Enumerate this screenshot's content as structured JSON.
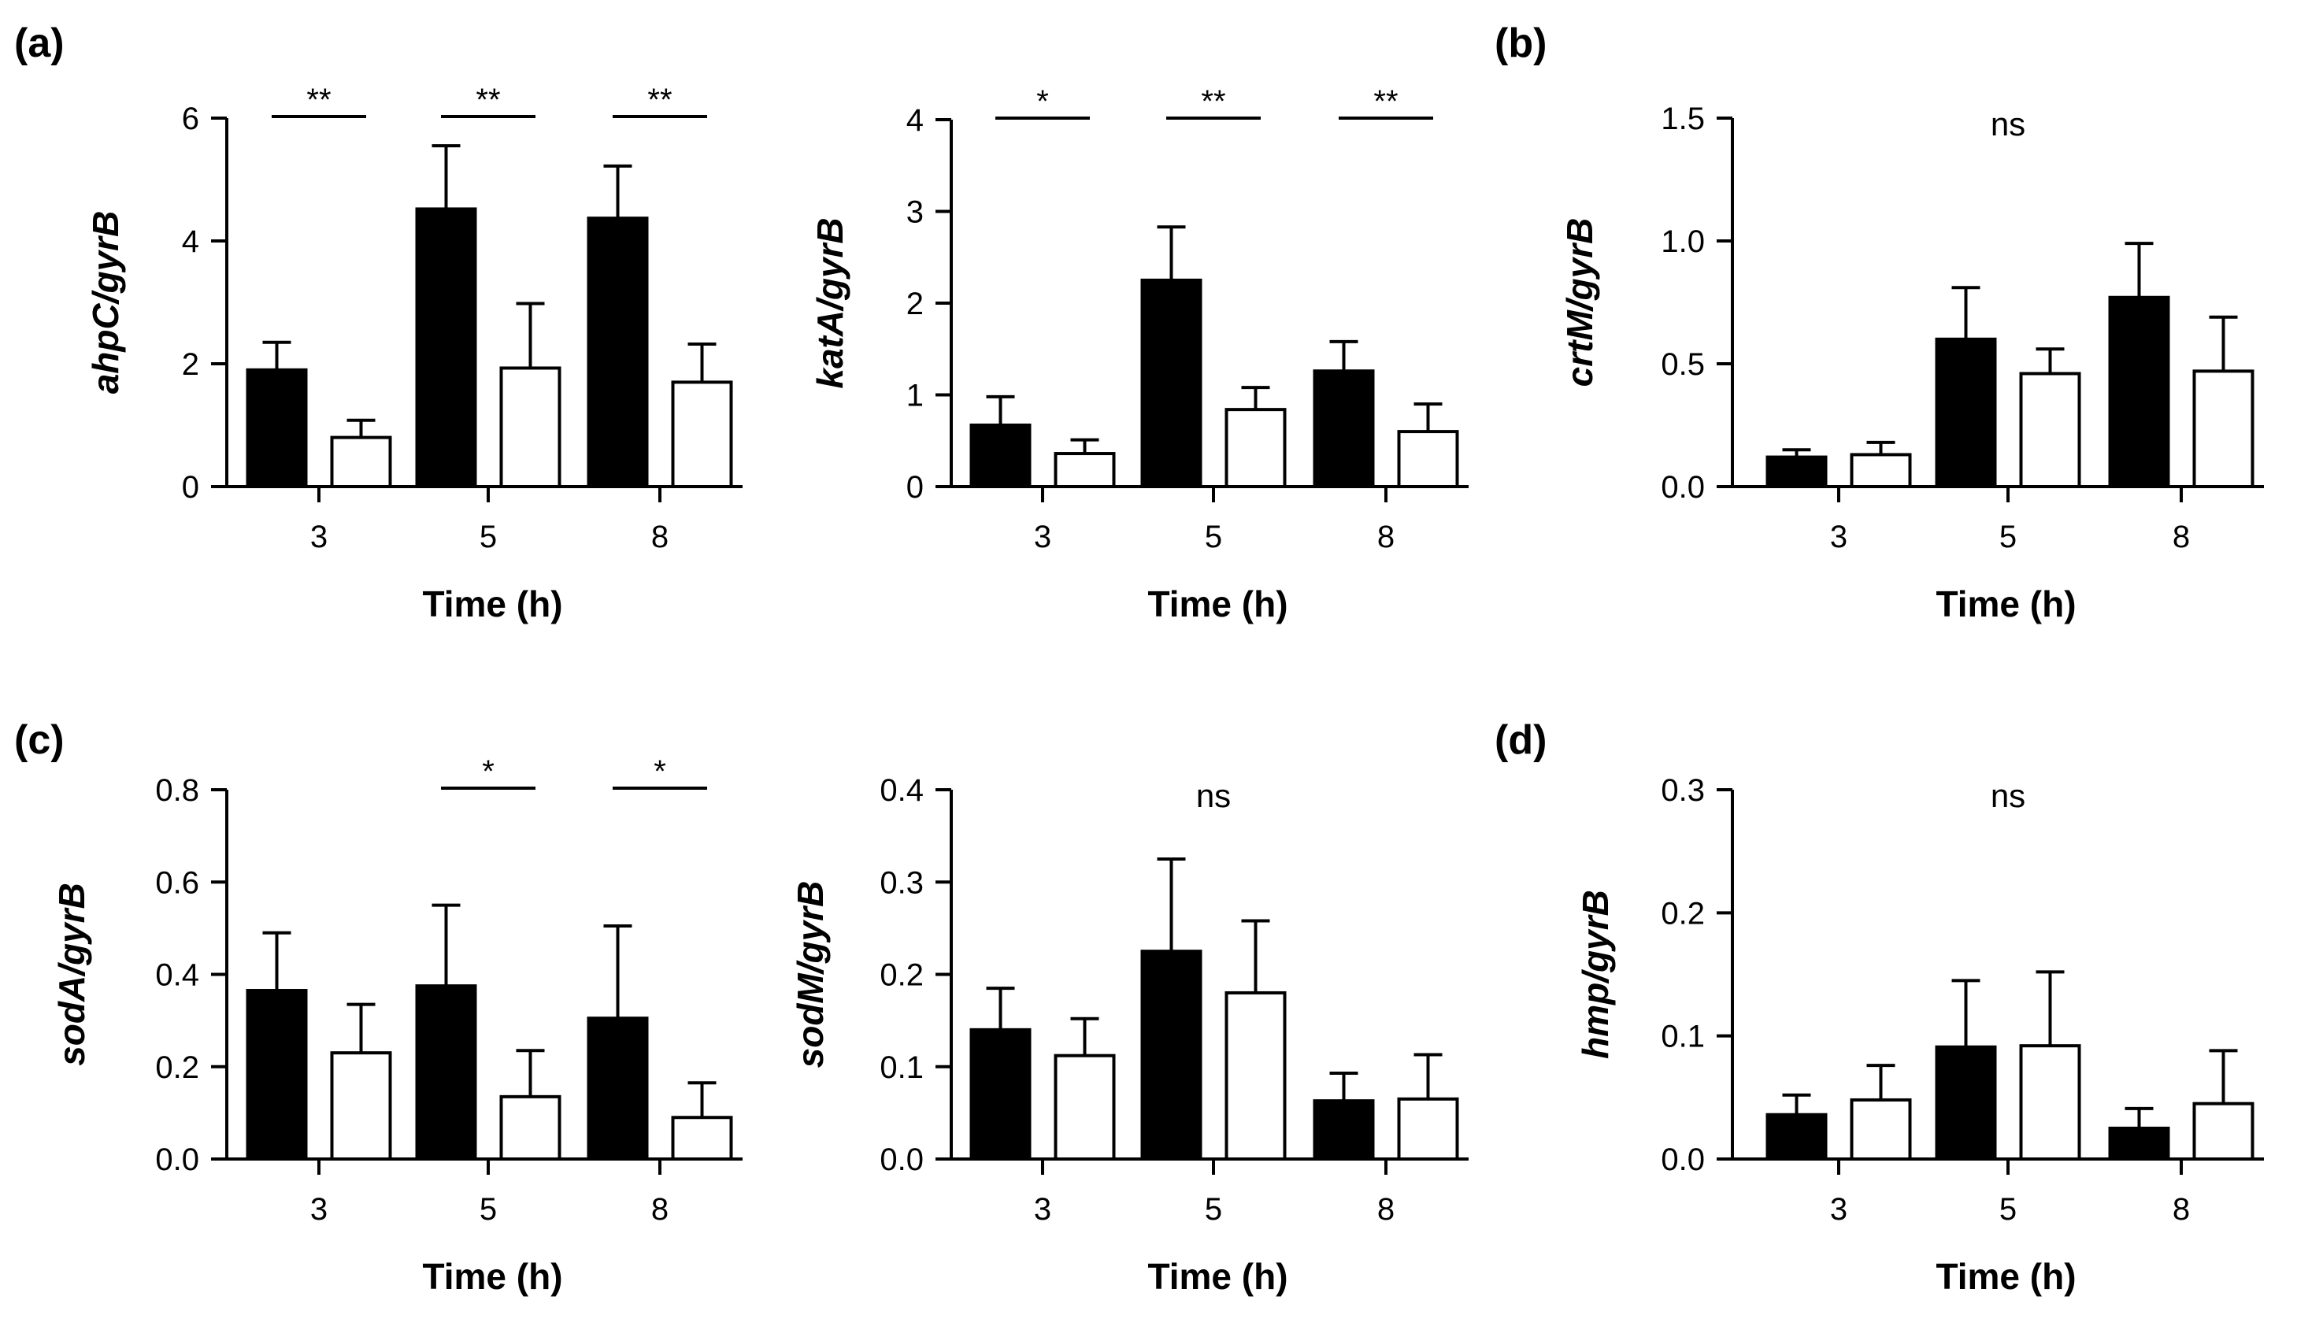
{
  "panel_letters": [
    "(a)",
    "(b)",
    "(c)",
    "(d)"
  ],
  "colors": {
    "series_filled": "#000000",
    "series_open": "#ffffff",
    "stroke": "#000000"
  },
  "chart_data": [
    {
      "type": "bar",
      "letter": "(a)",
      "ylabel": "ahpC/gyrB",
      "xlabel": "Time (h)",
      "categories": [
        "3",
        "5",
        "8"
      ],
      "ylim": [
        0,
        6
      ],
      "yticks": [
        "0",
        "2",
        "4",
        "6"
      ],
      "ytick_values": [
        0,
        2,
        4,
        6
      ],
      "series": [
        {
          "name": "filled",
          "values": [
            1.9,
            4.52,
            4.37
          ],
          "errors": [
            0.45,
            1.03,
            0.85
          ]
        },
        {
          "name": "open",
          "values": [
            0.8,
            1.93,
            1.7
          ],
          "errors": [
            0.28,
            1.05,
            0.62
          ]
        }
      ],
      "significance": [
        {
          "category": "3",
          "label": "**"
        },
        {
          "category": "5",
          "label": "**"
        },
        {
          "category": "8",
          "label": "**"
        }
      ],
      "ns_label": null
    },
    {
      "type": "bar",
      "letter": "",
      "ylabel": "katA/gyrB",
      "xlabel": "Time (h)",
      "categories": [
        "3",
        "5",
        "8"
      ],
      "ylim": [
        0,
        4
      ],
      "yticks": [
        "0",
        "1",
        "2",
        "3",
        "4"
      ],
      "ytick_values": [
        0,
        1,
        2,
        3,
        4
      ],
      "series": [
        {
          "name": "filled",
          "values": [
            0.67,
            2.25,
            1.26
          ],
          "errors": [
            0.31,
            0.58,
            0.32
          ]
        },
        {
          "name": "open",
          "values": [
            0.36,
            0.84,
            0.6
          ],
          "errors": [
            0.15,
            0.24,
            0.3
          ]
        }
      ],
      "significance": [
        {
          "category": "3",
          "label": "*"
        },
        {
          "category": "5",
          "label": "**"
        },
        {
          "category": "8",
          "label": "**"
        }
      ],
      "ns_label": null
    },
    {
      "type": "bar",
      "letter": "(b)",
      "ylabel": "crtM/gyrB",
      "xlabel": "Time (h)",
      "categories": [
        "3",
        "5",
        "8"
      ],
      "ylim": [
        0,
        1.5
      ],
      "yticks": [
        "0.0",
        "0.5",
        "1.0",
        "1.5"
      ],
      "ytick_values": [
        0,
        0.5,
        1.0,
        1.5
      ],
      "series": [
        {
          "name": "filled",
          "values": [
            0.12,
            0.6,
            0.77
          ],
          "errors": [
            0.03,
            0.21,
            0.22
          ]
        },
        {
          "name": "open",
          "values": [
            0.13,
            0.46,
            0.47
          ],
          "errors": [
            0.05,
            0.1,
            0.22
          ]
        }
      ],
      "significance": [],
      "ns_label": "ns"
    },
    {
      "type": "bar",
      "letter": "(c)",
      "ylabel": "sodA/gyrB",
      "xlabel": "Time (h)",
      "categories": [
        "3",
        "5",
        "8"
      ],
      "ylim": [
        0,
        0.8
      ],
      "yticks": [
        "0.0",
        "0.2",
        "0.4",
        "0.6",
        "0.8"
      ],
      "ytick_values": [
        0,
        0.2,
        0.4,
        0.6,
        0.8
      ],
      "series": [
        {
          "name": "filled",
          "values": [
            0.365,
            0.375,
            0.305
          ],
          "errors": [
            0.125,
            0.175,
            0.2
          ]
        },
        {
          "name": "open",
          "values": [
            0.23,
            0.135,
            0.09
          ],
          "errors": [
            0.105,
            0.1,
            0.075
          ]
        }
      ],
      "significance": [
        {
          "category": "5",
          "label": "*"
        },
        {
          "category": "8",
          "label": "*"
        }
      ],
      "ns_label": null
    },
    {
      "type": "bar",
      "letter": "",
      "ylabel": "sodM/gyrB",
      "xlabel": "Time (h)",
      "categories": [
        "3",
        "5",
        "8"
      ],
      "ylim": [
        0,
        0.4
      ],
      "yticks": [
        "0.0",
        "0.1",
        "0.2",
        "0.3",
        "0.4"
      ],
      "ytick_values": [
        0,
        0.1,
        0.2,
        0.3,
        0.4
      ],
      "series": [
        {
          "name": "filled",
          "values": [
            0.14,
            0.225,
            0.063
          ],
          "errors": [
            0.045,
            0.1,
            0.03
          ]
        },
        {
          "name": "open",
          "values": [
            0.112,
            0.18,
            0.065
          ],
          "errors": [
            0.04,
            0.078,
            0.048
          ]
        }
      ],
      "significance": [],
      "ns_label": "ns"
    },
    {
      "type": "bar",
      "letter": "(d)",
      "ylabel": "hmp/gyrB",
      "xlabel": "Time (h)",
      "categories": [
        "3",
        "5",
        "8"
      ],
      "ylim": [
        0,
        0.3
      ],
      "yticks": [
        "0.0",
        "0.1",
        "0.2",
        "0.3"
      ],
      "ytick_values": [
        0,
        0.1,
        0.2,
        0.3
      ],
      "series": [
        {
          "name": "filled",
          "values": [
            0.036,
            0.091,
            0.025
          ],
          "errors": [
            0.016,
            0.054,
            0.016
          ]
        },
        {
          "name": "open",
          "values": [
            0.048,
            0.092,
            0.045
          ],
          "errors": [
            0.028,
            0.06,
            0.043
          ]
        }
      ],
      "significance": [],
      "ns_label": "ns"
    }
  ]
}
